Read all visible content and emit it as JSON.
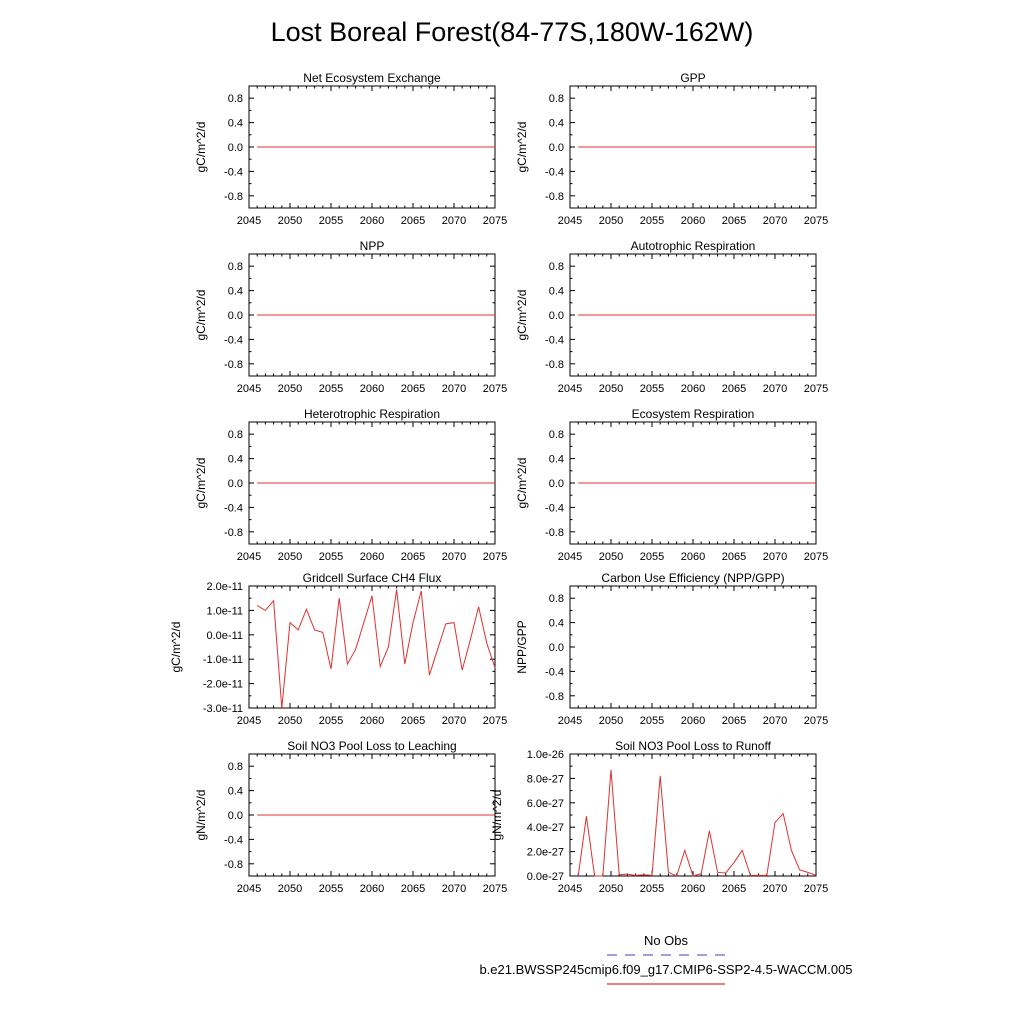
{
  "title": "Lost Boreal Forest(84-77S,180W-162W)",
  "legend": {
    "obs_label": "No Obs",
    "obs_color": "#6666cc",
    "model_label": "b.e21.BWSSP245cmip6.f09_g17.CMIP6-SSP2-4.5-WACCM.005",
    "model_color": "#e03030"
  },
  "chart_data": [
    {
      "type": "line",
      "title": "Net Ecosystem Exchange",
      "ylabel": "gC/m^2/d",
      "xlim": [
        2045,
        2075
      ],
      "ylim": [
        -1,
        1
      ],
      "xticks": [
        2045,
        2050,
        2055,
        2060,
        2065,
        2070,
        2075
      ],
      "xtick_labels": [
        "2045",
        "2050",
        "2055",
        "2060",
        "2065",
        "2070",
        "2075"
      ],
      "yticks": [
        -0.8,
        -0.4,
        0.0,
        0.4,
        0.8
      ],
      "ytick_labels": [
        "-0.8",
        "-0.4",
        "0.0",
        "0.4",
        "0.8"
      ],
      "series": [
        {
          "x": [
            2046,
            2075
          ],
          "y": [
            0,
            0
          ],
          "color": "#e03030"
        }
      ]
    },
    {
      "type": "line",
      "title": "GPP",
      "ylabel": "gC/m^2/d",
      "xlim": [
        2045,
        2075
      ],
      "ylim": [
        -1,
        1
      ],
      "xticks": [
        2045,
        2050,
        2055,
        2060,
        2065,
        2070,
        2075
      ],
      "xtick_labels": [
        "2045",
        "2050",
        "2055",
        "2060",
        "2065",
        "2070",
        "2075"
      ],
      "yticks": [
        -0.8,
        -0.4,
        0.0,
        0.4,
        0.8
      ],
      "ytick_labels": [
        "-0.8",
        "-0.4",
        "0.0",
        "0.4",
        "0.8"
      ],
      "series": [
        {
          "x": [
            2046,
            2075
          ],
          "y": [
            0,
            0
          ],
          "color": "#e03030"
        }
      ]
    },
    {
      "type": "line",
      "title": "NPP",
      "ylabel": "gC/m^2/d",
      "xlim": [
        2045,
        2075
      ],
      "ylim": [
        -1,
        1
      ],
      "xticks": [
        2045,
        2050,
        2055,
        2060,
        2065,
        2070,
        2075
      ],
      "xtick_labels": [
        "2045",
        "2050",
        "2055",
        "2060",
        "2065",
        "2070",
        "2075"
      ],
      "yticks": [
        -0.8,
        -0.4,
        0.0,
        0.4,
        0.8
      ],
      "ytick_labels": [
        "-0.8",
        "-0.4",
        "0.0",
        "0.4",
        "0.8"
      ],
      "series": [
        {
          "x": [
            2046,
            2075
          ],
          "y": [
            0,
            0
          ],
          "color": "#e03030"
        }
      ]
    },
    {
      "type": "line",
      "title": "Autotrophic Respiration",
      "ylabel": "gC/m^2/d",
      "xlim": [
        2045,
        2075
      ],
      "ylim": [
        -1,
        1
      ],
      "xticks": [
        2045,
        2050,
        2055,
        2060,
        2065,
        2070,
        2075
      ],
      "xtick_labels": [
        "2045",
        "2050",
        "2055",
        "2060",
        "2065",
        "2070",
        "2075"
      ],
      "yticks": [
        -0.8,
        -0.4,
        0.0,
        0.4,
        0.8
      ],
      "ytick_labels": [
        "-0.8",
        "-0.4",
        "0.0",
        "0.4",
        "0.8"
      ],
      "series": [
        {
          "x": [
            2046,
            2075
          ],
          "y": [
            0,
            0
          ],
          "color": "#e03030"
        }
      ]
    },
    {
      "type": "line",
      "title": "Heterotrophic Respiration",
      "ylabel": "gC/m^2/d",
      "xlim": [
        2045,
        2075
      ],
      "ylim": [
        -1,
        1
      ],
      "xticks": [
        2045,
        2050,
        2055,
        2060,
        2065,
        2070,
        2075
      ],
      "xtick_labels": [
        "2045",
        "2050",
        "2055",
        "2060",
        "2065",
        "2070",
        "2075"
      ],
      "yticks": [
        -0.8,
        -0.4,
        0.0,
        0.4,
        0.8
      ],
      "ytick_labels": [
        "-0.8",
        "-0.4",
        "0.0",
        "0.4",
        "0.8"
      ],
      "series": [
        {
          "x": [
            2046,
            2075
          ],
          "y": [
            0,
            0
          ],
          "color": "#e03030"
        }
      ]
    },
    {
      "type": "line",
      "title": "Ecosystem Respiration",
      "ylabel": "gC/m^2/d",
      "xlim": [
        2045,
        2075
      ],
      "ylim": [
        -1,
        1
      ],
      "xticks": [
        2045,
        2050,
        2055,
        2060,
        2065,
        2070,
        2075
      ],
      "xtick_labels": [
        "2045",
        "2050",
        "2055",
        "2060",
        "2065",
        "2070",
        "2075"
      ],
      "yticks": [
        -0.8,
        -0.4,
        0.0,
        0.4,
        0.8
      ],
      "ytick_labels": [
        "-0.8",
        "-0.4",
        "0.0",
        "0.4",
        "0.8"
      ],
      "series": [
        {
          "x": [
            2046,
            2075
          ],
          "y": [
            0,
            0
          ],
          "color": "#e03030"
        }
      ]
    },
    {
      "type": "line",
      "title": "Gridcell Surface CH4 Flux",
      "ylabel": "gC/m^2/d",
      "xlim": [
        2045,
        2075
      ],
      "ylim": [
        -3e-11,
        2e-11
      ],
      "xticks": [
        2045,
        2050,
        2055,
        2060,
        2065,
        2070,
        2075
      ],
      "xtick_labels": [
        "2045",
        "2050",
        "2055",
        "2060",
        "2065",
        "2070",
        "2075"
      ],
      "yticks": [
        -3e-11,
        -2e-11,
        -1e-11,
        0.0,
        1e-11,
        2e-11
      ],
      "ytick_labels": [
        "-3.0e-11",
        "-2.0e-11",
        "-1.0e-11",
        "0.0e-11",
        "1.0e-11",
        "2.0e-11"
      ],
      "series": [
        {
          "x": [
            2046,
            2047,
            2048,
            2049,
            2050,
            2051,
            2052,
            2053,
            2054,
            2055,
            2056,
            2057,
            2058,
            2059,
            2060,
            2061,
            2062,
            2063,
            2064,
            2065,
            2066,
            2067,
            2068,
            2069,
            2070,
            2071,
            2072,
            2073,
            2074,
            2075
          ],
          "y": [
            1.2e-11,
            1e-11,
            1.4e-11,
            -3e-11,
            5e-12,
            2e-12,
            1.05e-11,
            2e-12,
            1e-12,
            -1.4e-11,
            1.5e-11,
            -1.2e-11,
            -6e-12,
            5e-12,
            1.6e-11,
            -1.3e-11,
            -5e-12,
            1.85e-11,
            -1.2e-11,
            5e-12,
            1.8e-11,
            -1.65e-11,
            -6e-12,
            4.5e-12,
            5e-12,
            -1.45e-11,
            -2e-12,
            1.15e-11,
            -3.5e-12,
            -1.35e-11
          ],
          "color": "#e03030"
        }
      ]
    },
    {
      "type": "line",
      "title": "Carbon Use Efficiency (NPP/GPP)",
      "ylabel": "NPP/GPP",
      "xlim": [
        2045,
        2075
      ],
      "ylim": [
        -1,
        1
      ],
      "xticks": [
        2045,
        2050,
        2055,
        2060,
        2065,
        2070,
        2075
      ],
      "xtick_labels": [
        "2045",
        "2050",
        "2055",
        "2060",
        "2065",
        "2070",
        "2075"
      ],
      "yticks": [
        -0.8,
        -0.4,
        0.0,
        0.4,
        0.8
      ],
      "ytick_labels": [
        "-0.8",
        "-0.4",
        "0.0",
        "0.4",
        "0.8"
      ],
      "series": []
    },
    {
      "type": "line",
      "title": "Soil NO3 Pool Loss to Leaching",
      "ylabel": "gN/m^2/d",
      "xlim": [
        2045,
        2075
      ],
      "ylim": [
        -1,
        1
      ],
      "xticks": [
        2045,
        2050,
        2055,
        2060,
        2065,
        2070,
        2075
      ],
      "xtick_labels": [
        "2045",
        "2050",
        "2055",
        "2060",
        "2065",
        "2070",
        "2075"
      ],
      "yticks": [
        -0.8,
        -0.4,
        0.0,
        0.4,
        0.8
      ],
      "ytick_labels": [
        "-0.8",
        "-0.4",
        "0.0",
        "0.4",
        "0.8"
      ],
      "series": [
        {
          "x": [
            2046,
            2075
          ],
          "y": [
            0,
            0
          ],
          "color": "#e03030"
        }
      ]
    },
    {
      "type": "line",
      "title": "Soil NO3 Pool Loss to Runoff",
      "ylabel": "gN/m^2/d",
      "xlim": [
        2045,
        2075
      ],
      "ylim": [
        0,
        1e-26
      ],
      "xticks": [
        2045,
        2050,
        2055,
        2060,
        2065,
        2070,
        2075
      ],
      "xtick_labels": [
        "2045",
        "2050",
        "2055",
        "2060",
        "2065",
        "2070",
        "2075"
      ],
      "yticks": [
        0,
        2e-27,
        4e-27,
        6e-27,
        8e-27,
        1e-26
      ],
      "ytick_labels": [
        "0.0e-27",
        "2.0e-27",
        "4.0e-27",
        "6.0e-27",
        "8.0e-27",
        "1.0e-26"
      ],
      "series": [
        {
          "x": [
            2046,
            2047,
            2048,
            2049,
            2050,
            2051,
            2052,
            2053,
            2054,
            2055,
            2056,
            2057,
            2058,
            2059,
            2060,
            2061,
            2062,
            2063,
            2064,
            2065,
            2066,
            2067,
            2068,
            2069,
            2070,
            2071,
            2072,
            2073,
            2074,
            2075
          ],
          "y": [
            0,
            4.9e-27,
            0,
            0,
            8.7e-27,
            1e-28,
            1.5e-28,
            5e-29,
            1e-28,
            5e-29,
            8.2e-27,
            3e-28,
            0,
            2.1e-27,
            0,
            2e-28,
            3.7e-27,
            3e-28,
            2.5e-28,
            1.1e-27,
            2.1e-27,
            5e-29,
            5e-29,
            5e-29,
            4.4e-27,
            5.1e-27,
            2.1e-27,
            5e-28,
            3e-28,
            5e-29
          ],
          "color": "#e03030"
        }
      ]
    }
  ]
}
